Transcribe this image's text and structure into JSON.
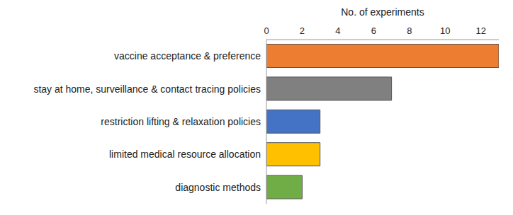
{
  "chart_data": {
    "type": "bar",
    "orientation": "horizontal",
    "x_label": "No. of experiments",
    "categories": [
      "vaccine acceptance & preference",
      "stay at home, surveillance & contact tracing policies",
      "restriction lifting & relaxation policies",
      "limited medical resource allocation",
      "diagnostic methods"
    ],
    "values": [
      13,
      7,
      3,
      3,
      2
    ],
    "colors": [
      "#ed7d31",
      "#808080",
      "#4472c4",
      "#ffc000",
      "#70ad47"
    ],
    "xlim": [
      0,
      13
    ],
    "xticks": [
      0,
      2,
      4,
      6,
      8,
      10,
      12
    ],
    "grid": false
  }
}
